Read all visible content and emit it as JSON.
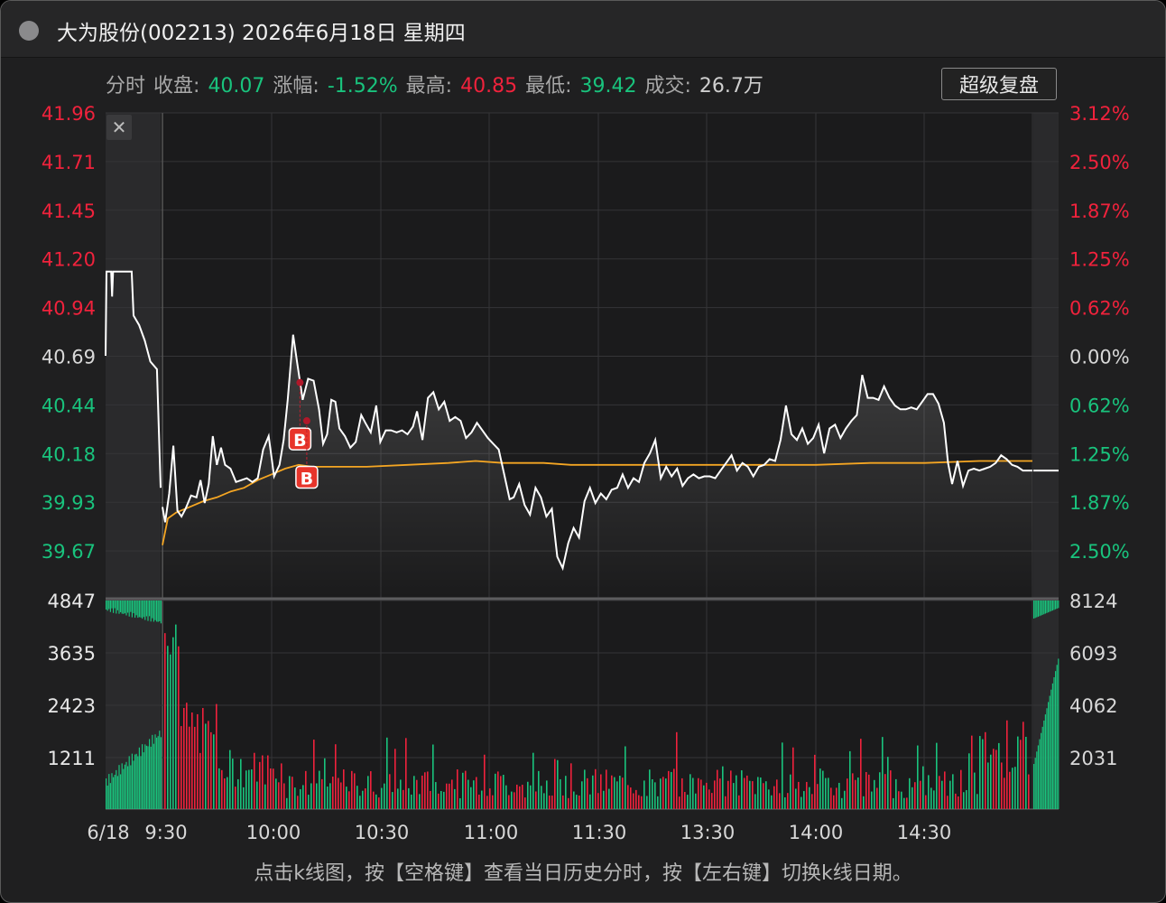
{
  "window": {
    "title": "大为股份(002213) 2026年6月18日 星期四"
  },
  "stats": {
    "mode_label": "分时",
    "close_label": "收盘:",
    "close_value": "40.07",
    "change_label": "涨幅:",
    "change_value": "-1.52%",
    "high_label": "最高:",
    "high_value": "40.85",
    "low_label": "最低:",
    "low_value": "39.42",
    "volume_label": "成交:",
    "volume_value": "26.7万"
  },
  "toolbar": {
    "review_label": "超级复盘",
    "close_symbol": "✕"
  },
  "hint": "点击k线图，按【空格键】查看当日历史分时，按【左右键】切换k线日期。",
  "colors": {
    "up": "#f0223c",
    "down": "#19c37d",
    "flat": "#d8d8d8",
    "price_line": "#ffffff",
    "avg_line": "#f5a623",
    "marker": "#e8352b"
  },
  "chart_data": {
    "type": "line",
    "price_axis": {
      "left_labels": [
        "41.96",
        "41.71",
        "41.45",
        "41.20",
        "40.94",
        "40.69",
        "40.44",
        "40.18",
        "39.93",
        "39.67"
      ],
      "right_labels": [
        "3.12%",
        "2.50%",
        "1.87%",
        "1.25%",
        "0.62%",
        "0.00%",
        "0.62%",
        "1.25%",
        "1.87%",
        "2.50%"
      ],
      "prev_close": 40.69,
      "ylim": [
        39.67,
        41.96
      ]
    },
    "volume_axis": {
      "left_labels": [
        "4847",
        "3635",
        "2423",
        "1211"
      ],
      "right_labels": [
        "8124",
        "6093",
        "4062",
        "2031"
      ]
    },
    "time_labels": [
      "6/18",
      "9:30",
      "10:00",
      "10:30",
      "11:00",
      "11:30",
      "13:30",
      "14:00",
      "14:30"
    ],
    "price_series": {
      "pre_market": [
        [
          0,
          40.69
        ],
        [
          1,
          41.13
        ],
        [
          6,
          41.13
        ],
        [
          7,
          41.0
        ],
        [
          8,
          41.13
        ],
        [
          28,
          41.13
        ],
        [
          30,
          40.9
        ],
        [
          36,
          40.85
        ],
        [
          42,
          40.77
        ],
        [
          48,
          40.66
        ],
        [
          55,
          40.62
        ],
        [
          59,
          40.0
        ]
      ],
      "intraday": [
        [
          0,
          39.9
        ],
        [
          2,
          39.82
        ],
        [
          5,
          39.97
        ],
        [
          8,
          40.22
        ],
        [
          11,
          39.88
        ],
        [
          14,
          39.85
        ],
        [
          17,
          39.89
        ],
        [
          21,
          39.96
        ],
        [
          25,
          39.95
        ],
        [
          28,
          40.04
        ],
        [
          31,
          39.92
        ],
        [
          34,
          40.02
        ],
        [
          37,
          40.27
        ],
        [
          40,
          40.12
        ],
        [
          43,
          40.21
        ],
        [
          46,
          40.12
        ],
        [
          50,
          40.1
        ],
        [
          54,
          40.03
        ],
        [
          58,
          40.04
        ],
        [
          62,
          40.05
        ],
        [
          66,
          40.03
        ],
        [
          70,
          40.05
        ],
        [
          74,
          40.2
        ],
        [
          78,
          40.27
        ],
        [
          82,
          40.06
        ],
        [
          86,
          40.12
        ],
        [
          89,
          40.25
        ],
        [
          92,
          40.46
        ],
        [
          96,
          40.8
        ],
        [
          99,
          40.65
        ],
        [
          103,
          40.46
        ],
        [
          107,
          40.57
        ],
        [
          111,
          40.56
        ],
        [
          115,
          40.41
        ],
        [
          118,
          40.23
        ],
        [
          121,
          40.28
        ],
        [
          124,
          40.46
        ],
        [
          127,
          40.45
        ],
        [
          130,
          40.31
        ],
        [
          134,
          40.27
        ],
        [
          138,
          40.21
        ],
        [
          142,
          40.24
        ],
        [
          146,
          40.38
        ],
        [
          149,
          40.34
        ],
        [
          153,
          40.29
        ],
        [
          157,
          40.43
        ],
        [
          160,
          40.24
        ],
        [
          164,
          40.3
        ],
        [
          168,
          40.3
        ],
        [
          172,
          40.29
        ],
        [
          176,
          40.3
        ],
        [
          180,
          40.28
        ],
        [
          184,
          40.32
        ],
        [
          187,
          40.4
        ],
        [
          191,
          40.25
        ],
        [
          195,
          40.47
        ],
        [
          199,
          40.5
        ],
        [
          203,
          40.41
        ],
        [
          207,
          40.45
        ],
        [
          211,
          40.35
        ],
        [
          215,
          40.37
        ],
        [
          219,
          40.35
        ],
        [
          223,
          40.26
        ],
        [
          227,
          40.29
        ],
        [
          231,
          40.34
        ],
        [
          235,
          40.3
        ],
        [
          239,
          40.26
        ],
        [
          243,
          40.23
        ],
        [
          247,
          40.2
        ],
        [
          251,
          40.07
        ],
        [
          255,
          39.94
        ],
        [
          258,
          39.95
        ],
        [
          262,
          40.02
        ],
        [
          266,
          39.91
        ],
        [
          270,
          39.86
        ],
        [
          274,
          40.0
        ],
        [
          278,
          39.95
        ],
        [
          282,
          39.85
        ],
        [
          286,
          39.89
        ],
        [
          290,
          39.64
        ],
        [
          294,
          39.58
        ],
        [
          298,
          39.71
        ],
        [
          302,
          39.79
        ],
        [
          306,
          39.74
        ],
        [
          310,
          39.93
        ],
        [
          314,
          40.0
        ],
        [
          318,
          39.92
        ],
        [
          322,
          39.97
        ],
        [
          326,
          39.94
        ],
        [
          330,
          39.99
        ],
        [
          334,
          40.0
        ],
        [
          338,
          40.07
        ],
        [
          342,
          40.0
        ],
        [
          346,
          40.05
        ],
        [
          350,
          40.03
        ],
        [
          354,
          40.13
        ],
        [
          358,
          40.18
        ],
        [
          362,
          40.25
        ],
        [
          366,
          40.05
        ],
        [
          370,
          40.11
        ],
        [
          374,
          40.06
        ],
        [
          378,
          40.1
        ],
        [
          382,
          40.01
        ],
        [
          386,
          40.05
        ],
        [
          390,
          40.07
        ],
        [
          394,
          40.05
        ],
        [
          398,
          40.06
        ],
        [
          402,
          40.06
        ],
        [
          406,
          40.05
        ],
        [
          410,
          40.09
        ],
        [
          414,
          40.13
        ],
        [
          418,
          40.17
        ],
        [
          422,
          40.09
        ],
        [
          426,
          40.13
        ],
        [
          430,
          40.11
        ],
        [
          434,
          40.06
        ],
        [
          438,
          40.11
        ],
        [
          442,
          40.12
        ],
        [
          446,
          40.15
        ],
        [
          450,
          40.14
        ],
        [
          454,
          40.25
        ],
        [
          458,
          40.43
        ],
        [
          462,
          40.28
        ],
        [
          466,
          40.25
        ],
        [
          470,
          40.31
        ],
        [
          474,
          40.23
        ],
        [
          478,
          40.26
        ],
        [
          482,
          40.33
        ],
        [
          486,
          40.18
        ],
        [
          490,
          40.31
        ],
        [
          494,
          40.33
        ],
        [
          498,
          40.26
        ],
        [
          502,
          40.31
        ],
        [
          506,
          40.35
        ],
        [
          510,
          40.38
        ],
        [
          514,
          40.59
        ],
        [
          518,
          40.47
        ],
        [
          522,
          40.47
        ],
        [
          526,
          40.46
        ],
        [
          530,
          40.53
        ],
        [
          534,
          40.47
        ],
        [
          538,
          40.43
        ],
        [
          542,
          40.41
        ],
        [
          546,
          40.41
        ],
        [
          550,
          40.42
        ],
        [
          554,
          40.41
        ],
        [
          558,
          40.45
        ],
        [
          562,
          40.49
        ],
        [
          566,
          40.49
        ],
        [
          570,
          40.44
        ],
        [
          574,
          40.34
        ],
        [
          577,
          40.13
        ],
        [
          580,
          40.02
        ],
        [
          584,
          40.14
        ],
        [
          588,
          40.01
        ],
        [
          592,
          40.09
        ],
        [
          596,
          40.1
        ],
        [
          600,
          40.09
        ],
        [
          604,
          40.1
        ],
        [
          608,
          40.11
        ],
        [
          612,
          40.13
        ],
        [
          616,
          40.17
        ],
        [
          620,
          40.15
        ],
        [
          624,
          40.12
        ],
        [
          628,
          40.11
        ],
        [
          632,
          40.09
        ],
        [
          636,
          40.09
        ],
        [
          639,
          40.09
        ]
      ]
    },
    "avg_series": [
      [
        0,
        39.7
      ],
      [
        4,
        39.84
      ],
      [
        10,
        39.87
      ],
      [
        20,
        39.9
      ],
      [
        30,
        39.93
      ],
      [
        40,
        39.95
      ],
      [
        50,
        39.98
      ],
      [
        60,
        40.0
      ],
      [
        70,
        40.04
      ],
      [
        80,
        40.07
      ],
      [
        90,
        40.1
      ],
      [
        100,
        40.12
      ],
      [
        110,
        40.11
      ],
      [
        120,
        40.11
      ],
      [
        150,
        40.11
      ],
      [
        180,
        40.12
      ],
      [
        210,
        40.13
      ],
      [
        230,
        40.14
      ],
      [
        250,
        40.13
      ],
      [
        280,
        40.13
      ],
      [
        300,
        40.12
      ],
      [
        340,
        40.12
      ],
      [
        400,
        40.12
      ],
      [
        440,
        40.12
      ],
      [
        480,
        40.12
      ],
      [
        520,
        40.13
      ],
      [
        560,
        40.13
      ],
      [
        600,
        40.14
      ],
      [
        639,
        40.14
      ]
    ],
    "trade_markers": [
      {
        "label": "B",
        "x": 101,
        "price": 40.55,
        "to_price": 40.26
      },
      {
        "label": "B",
        "x": 106,
        "price": 40.35,
        "to_price": 40.06
      }
    ]
  }
}
